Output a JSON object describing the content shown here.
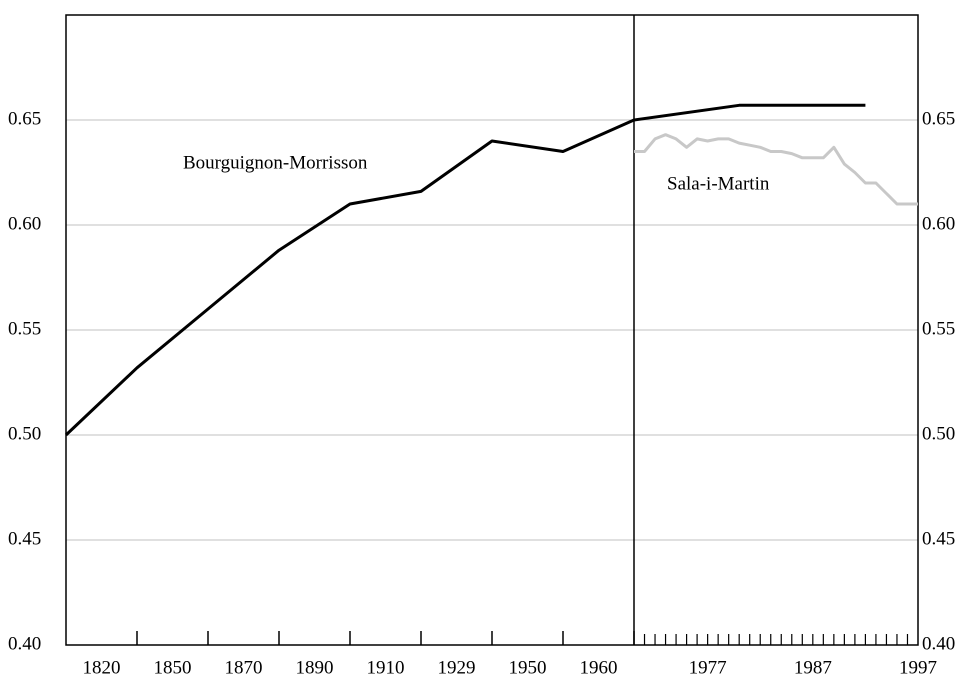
{
  "chart_data": [
    {
      "type": "line",
      "categories": [
        "1820",
        "1850",
        "1870",
        "1890",
        "1910",
        "1929",
        "1950",
        "1960"
      ],
      "series": [
        {
          "name": "Bourguignon-Morrisson",
          "color": "#000000",
          "values": [
            0.5,
            0.532,
            0.56,
            0.588,
            0.61,
            0.616,
            0.64,
            0.635
          ]
        }
      ],
      "ylim": [
        0.4,
        0.7
      ],
      "yticks": [
        {
          "value": 0.4,
          "label": "0.40"
        },
        0.45,
        {
          "value": 0.5,
          "label": "0.50"
        },
        0.55,
        {
          "value": 0.6,
          "label": "0.60"
        },
        0.65
      ],
      "grid": true
    },
    {
      "type": "line",
      "xlim": [
        1970,
        1997
      ],
      "xticks": [
        1977,
        1987,
        1997
      ],
      "minor_xticks": [
        1971,
        1972,
        1973,
        1974,
        1975,
        1976,
        1977,
        1978,
        1979,
        1980,
        1981,
        1982,
        1983,
        1984,
        1985,
        1986,
        1987,
        1988,
        1989,
        1990,
        1991,
        1992,
        1993,
        1994,
        1995,
        1996
      ],
      "series": [
        {
          "name": "Bourguignon-Morrisson",
          "color": "#000000",
          "x": [
            1970,
            1980,
            1992
          ],
          "values": [
            0.65,
            0.657,
            0.657
          ]
        },
        {
          "name": "Sala-i-Martin",
          "color": "#c8c8c8",
          "x": [
            1970,
            1971,
            1972,
            1973,
            1974,
            1975,
            1976,
            1977,
            1978,
            1979,
            1980,
            1981,
            1982,
            1983,
            1984,
            1985,
            1986,
            1987,
            1988,
            1989,
            1990,
            1991,
            1992,
            1993,
            1994,
            1995,
            1996,
            1997
          ],
          "values": [
            0.635,
            0.635,
            0.641,
            0.643,
            0.641,
            0.637,
            0.641,
            0.64,
            0.641,
            0.641,
            0.639,
            0.638,
            0.637,
            0.635,
            0.635,
            0.634,
            0.632,
            0.632,
            0.632,
            0.637,
            0.629,
            0.625,
            0.62,
            0.62,
            0.615,
            0.61,
            0.61,
            0.61
          ]
        }
      ],
      "ylim": [
        0.4,
        0.7
      ],
      "yticks": [
        {
          "value": 0.4,
          "label": "0.40"
        },
        0.45,
        {
          "value": 0.5,
          "label": "0.50"
        },
        0.55,
        {
          "value": 0.6,
          "label": "0.60"
        },
        0.65
      ],
      "grid": true
    }
  ]
}
